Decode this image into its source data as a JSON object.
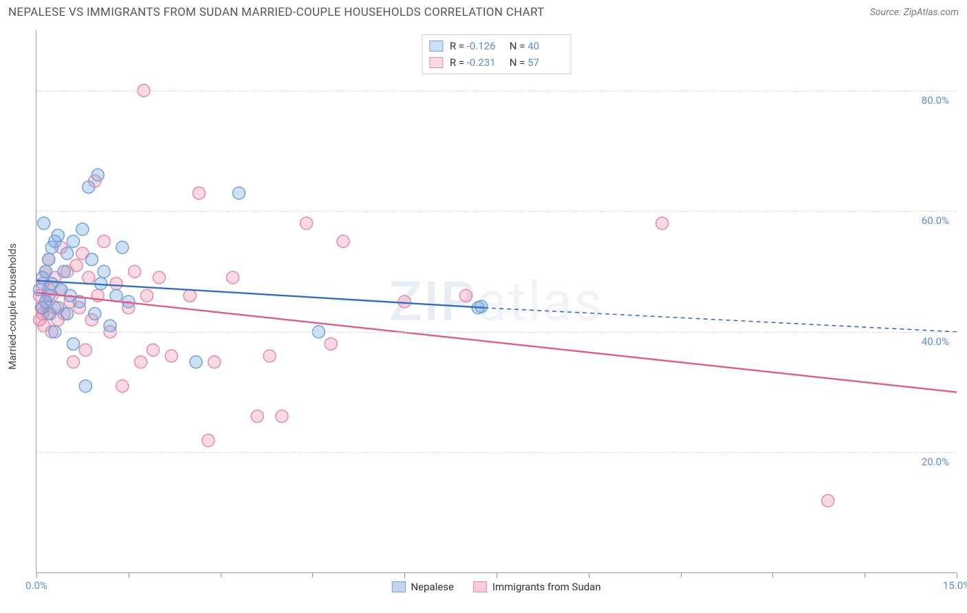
{
  "header": {
    "title": "NEPALESE VS IMMIGRANTS FROM SUDAN MARRIED-COUPLE HOUSEHOLDS CORRELATION CHART",
    "source": "Source: ZipAtlas.com"
  },
  "ylabel": "Married-couple Households",
  "watermark": {
    "bold": "ZIP",
    "light": "atlas"
  },
  "chart": {
    "type": "scatter",
    "xlim": [
      0,
      15
    ],
    "ylim": [
      0,
      90
    ],
    "xtick_positions": [
      0,
      1.5,
      3.0,
      4.5,
      6.0,
      7.5,
      9.0,
      10.5,
      12.0,
      13.5,
      15.0
    ],
    "xtick_labels": {
      "0": "0.0%",
      "15": "15.0%"
    },
    "ytick_positions": [
      20,
      40,
      60,
      80
    ],
    "ytick_labels": [
      "20.0%",
      "40.0%",
      "60.0%",
      "80.0%"
    ],
    "grid_color": "#d8d8d8",
    "axis_color": "#999999",
    "background_color": "#ffffff",
    "marker_radius": 9,
    "marker_stroke_width": 1.5,
    "line_width": 2.4,
    "series": [
      {
        "name": "Nepalese",
        "fill_color": "rgba(120,165,220,0.35)",
        "stroke_color": "#6da2db",
        "line_color": "#2f6fc0",
        "R": "-0.126",
        "N": "40",
        "regression": {
          "x1": 0,
          "y1": 48.5,
          "x2": 7.3,
          "y2": 44.0,
          "dash_x2": 15,
          "dash_y2": 40.0
        },
        "points": [
          [
            0.05,
            47
          ],
          [
            0.1,
            44
          ],
          [
            0.1,
            49
          ],
          [
            0.12,
            58
          ],
          [
            0.15,
            45
          ],
          [
            0.15,
            50
          ],
          [
            0.2,
            46
          ],
          [
            0.2,
            52
          ],
          [
            0.22,
            43
          ],
          [
            0.25,
            48
          ],
          [
            0.25,
            54
          ],
          [
            0.3,
            40
          ],
          [
            0.3,
            55
          ],
          [
            0.35,
            44
          ],
          [
            0.35,
            56
          ],
          [
            0.4,
            47
          ],
          [
            0.45,
            50
          ],
          [
            0.5,
            43
          ],
          [
            0.5,
            53
          ],
          [
            0.55,
            46
          ],
          [
            0.6,
            38
          ],
          [
            0.6,
            55
          ],
          [
            0.7,
            45
          ],
          [
            0.75,
            57
          ],
          [
            0.8,
            31
          ],
          [
            0.85,
            64
          ],
          [
            0.9,
            52
          ],
          [
            0.95,
            43
          ],
          [
            1.0,
            66
          ],
          [
            1.05,
            48
          ],
          [
            1.1,
            50
          ],
          [
            1.2,
            41
          ],
          [
            1.3,
            46
          ],
          [
            1.4,
            54
          ],
          [
            1.5,
            45
          ],
          [
            2.6,
            35
          ],
          [
            3.3,
            63
          ],
          [
            4.6,
            40
          ],
          [
            7.2,
            44
          ],
          [
            7.25,
            44.2
          ]
        ]
      },
      {
        "name": "Immigrants from Sudan",
        "fill_color": "rgba(235,130,160,0.30)",
        "stroke_color": "#e68aa6",
        "line_color": "#e05a84",
        "R": "-0.231",
        "N": "57",
        "regression": {
          "x1": 0,
          "y1": 46.5,
          "x2": 15,
          "y2": 30.0
        },
        "points": [
          [
            0.05,
            42
          ],
          [
            0.05,
            46
          ],
          [
            0.08,
            44
          ],
          [
            0.1,
            43
          ],
          [
            0.1,
            48
          ],
          [
            0.12,
            41
          ],
          [
            0.15,
            45
          ],
          [
            0.15,
            50
          ],
          [
            0.18,
            43
          ],
          [
            0.2,
            47
          ],
          [
            0.2,
            52
          ],
          [
            0.25,
            40
          ],
          [
            0.25,
            46
          ],
          [
            0.3,
            44
          ],
          [
            0.3,
            49
          ],
          [
            0.35,
            42
          ],
          [
            0.4,
            54
          ],
          [
            0.4,
            47
          ],
          [
            0.45,
            43
          ],
          [
            0.5,
            50
          ],
          [
            0.55,
            45
          ],
          [
            0.6,
            35
          ],
          [
            0.65,
            51
          ],
          [
            0.7,
            44
          ],
          [
            0.75,
            53
          ],
          [
            0.8,
            37
          ],
          [
            0.85,
            49
          ],
          [
            0.9,
            42
          ],
          [
            0.95,
            65
          ],
          [
            1.0,
            46
          ],
          [
            1.1,
            55
          ],
          [
            1.2,
            40
          ],
          [
            1.3,
            48
          ],
          [
            1.4,
            31
          ],
          [
            1.5,
            44
          ],
          [
            1.6,
            50
          ],
          [
            1.7,
            35
          ],
          [
            1.75,
            80
          ],
          [
            1.8,
            46
          ],
          [
            1.9,
            37
          ],
          [
            2.0,
            49
          ],
          [
            2.2,
            36
          ],
          [
            2.5,
            46
          ],
          [
            2.65,
            63
          ],
          [
            2.8,
            22
          ],
          [
            2.9,
            35
          ],
          [
            3.2,
            49
          ],
          [
            3.6,
            26
          ],
          [
            3.8,
            36
          ],
          [
            4.0,
            26
          ],
          [
            4.4,
            58
          ],
          [
            4.8,
            38
          ],
          [
            5.0,
            55
          ],
          [
            6.0,
            45
          ],
          [
            7.0,
            46
          ],
          [
            10.2,
            58
          ],
          [
            12.9,
            12
          ]
        ]
      }
    ]
  },
  "bottom_legend": [
    {
      "label": "Nepalese",
      "fill": "rgba(120,165,220,0.45)",
      "stroke": "#6da2db"
    },
    {
      "label": "Immigrants from Sudan",
      "fill": "rgba(235,130,160,0.40)",
      "stroke": "#e68aa6"
    }
  ]
}
